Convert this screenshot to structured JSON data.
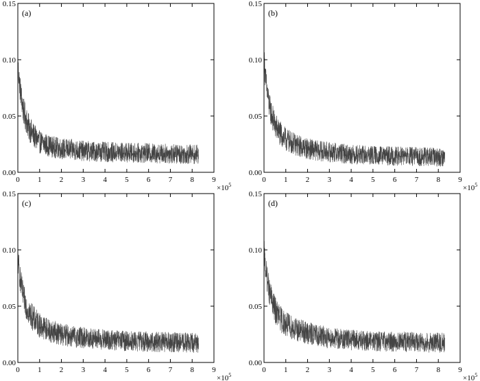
{
  "chart_data": [
    {
      "type": "line",
      "panel_label": "(a)",
      "x_multiplier": "×10",
      "x_multiplier_exp": "5",
      "xlim": [
        0,
        9
      ],
      "ylim": [
        0,
        0.15
      ],
      "x_ticks": [
        "0",
        "1",
        "2",
        "3",
        "4",
        "5",
        "6",
        "7",
        "8",
        "9"
      ],
      "y_ticks": [
        "0.00",
        "0.05",
        "0.10",
        "0.15"
      ],
      "series": [
        {
          "color": "#444444",
          "x": [
            0,
            0.1,
            0.25,
            0.5,
            0.75,
            1,
            1.5,
            2,
            2.5,
            3,
            4,
            5,
            6,
            7,
            8,
            8.3
          ],
          "y": [
            0.095,
            0.075,
            0.055,
            0.04,
            0.032,
            0.027,
            0.023,
            0.021,
            0.02,
            0.019,
            0.018,
            0.0175,
            0.017,
            0.0165,
            0.016,
            0.016
          ],
          "noise_amplitude": 0.012
        }
      ],
      "legend": "none",
      "grid": false
    },
    {
      "type": "line",
      "panel_label": "(b)",
      "x_multiplier": "×10",
      "x_multiplier_exp": "5",
      "xlim": [
        0,
        9
      ],
      "ylim": [
        0,
        0.15
      ],
      "x_ticks": [
        "0",
        "1",
        "2",
        "3",
        "4",
        "5",
        "6",
        "7",
        "8",
        "9"
      ],
      "y_ticks": [
        "0.00",
        "0.05",
        "0.10",
        "0.15"
      ],
      "series": [
        {
          "color": "#444444",
          "x": [
            0,
            0.1,
            0.25,
            0.5,
            0.75,
            1,
            1.5,
            2,
            2.5,
            3,
            4,
            5,
            6,
            7,
            8,
            8.3
          ],
          "y": [
            0.1,
            0.078,
            0.058,
            0.042,
            0.034,
            0.029,
            0.024,
            0.021,
            0.019,
            0.018,
            0.016,
            0.015,
            0.0145,
            0.014,
            0.0135,
            0.0135
          ],
          "noise_amplitude": 0.012
        }
      ],
      "legend": "none",
      "grid": false
    },
    {
      "type": "line",
      "panel_label": "(c)",
      "x_multiplier": "×10",
      "x_multiplier_exp": "5",
      "xlim": [
        0,
        9
      ],
      "ylim": [
        0,
        0.15
      ],
      "x_ticks": [
        "0",
        "1",
        "2",
        "3",
        "4",
        "5",
        "6",
        "7",
        "8",
        "9"
      ],
      "y_ticks": [
        "0.00",
        "0.05",
        "0.10",
        "0.15"
      ],
      "series": [
        {
          "color": "#444444",
          "x": [
            0,
            0.1,
            0.25,
            0.5,
            0.75,
            1,
            1.5,
            2,
            2.5,
            3,
            4,
            5,
            6,
            7,
            8,
            8.3
          ],
          "y": [
            0.093,
            0.075,
            0.058,
            0.045,
            0.038,
            0.033,
            0.028,
            0.025,
            0.023,
            0.022,
            0.02,
            0.019,
            0.0185,
            0.018,
            0.0175,
            0.0175
          ],
          "noise_amplitude": 0.012
        }
      ],
      "legend": "none",
      "grid": false
    },
    {
      "type": "line",
      "panel_label": "(d)",
      "x_multiplier": "×10",
      "x_multiplier_exp": "5",
      "xlim": [
        0,
        9
      ],
      "ylim": [
        0,
        0.15
      ],
      "x_ticks": [
        "0",
        "1",
        "2",
        "3",
        "4",
        "5",
        "6",
        "7",
        "8",
        "9"
      ],
      "y_ticks": [
        "0.00",
        "0.05",
        "0.10",
        "0.15"
      ],
      "series": [
        {
          "color": "#444444",
          "x": [
            0,
            0.1,
            0.25,
            0.5,
            0.75,
            1,
            1.5,
            2,
            2.5,
            3,
            4,
            5,
            6,
            7,
            8,
            8.3
          ],
          "y": [
            0.098,
            0.08,
            0.062,
            0.047,
            0.039,
            0.034,
            0.029,
            0.026,
            0.024,
            0.022,
            0.02,
            0.019,
            0.0185,
            0.018,
            0.0175,
            0.0175
          ],
          "noise_amplitude": 0.012
        }
      ],
      "legend": "none",
      "grid": false
    }
  ]
}
